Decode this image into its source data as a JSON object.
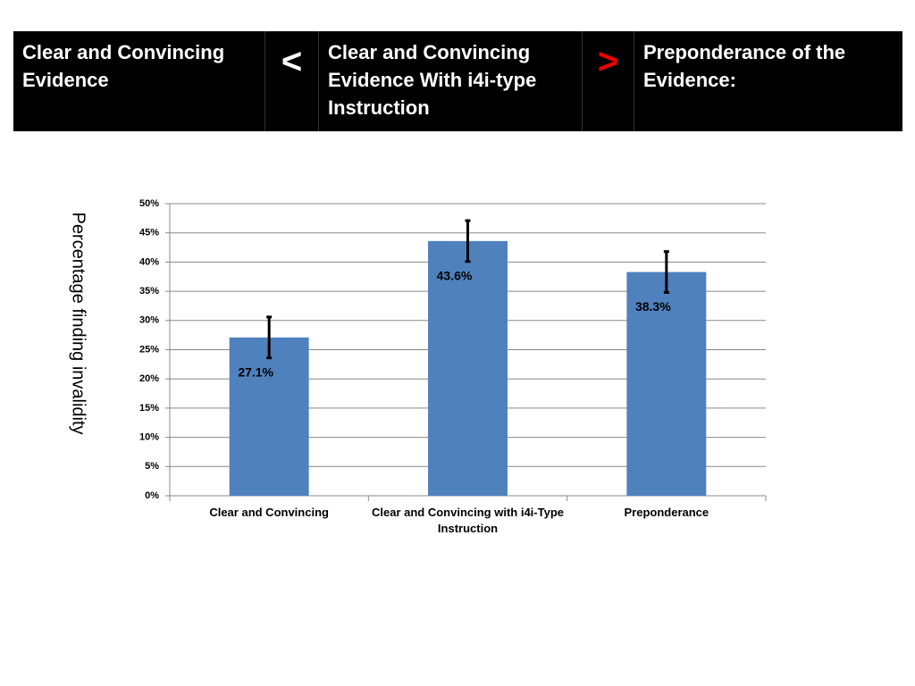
{
  "header": {
    "cells": [
      "Clear and Convincing Evidence",
      "<",
      "Clear and Convincing Evidence With i4i-type Instruction",
      ">",
      "Preponderance of the Evidence:"
    ]
  },
  "chart_data": {
    "type": "bar",
    "y_label": "Percentage finding invalidity",
    "categories": [
      "Clear and Convincing",
      "Clear and Convincing with i4i-Type Instruction",
      "Preponderance"
    ],
    "values": [
      27.1,
      43.6,
      38.3
    ],
    "value_labels": [
      "27.1%",
      "43.6%",
      "38.3%"
    ],
    "errors": [
      3.5,
      3.5,
      3.5
    ],
    "color": "#4f81bd",
    "ylim": [
      0,
      50
    ],
    "yticks": [
      {
        "value": 0,
        "label": "0%"
      },
      {
        "value": 5,
        "label": "5%"
      },
      {
        "value": 10,
        "label": "10%"
      },
      {
        "value": 15,
        "label": "15%"
      },
      {
        "value": 20,
        "label": "20%"
      },
      {
        "value": 25,
        "label": "25%"
      },
      {
        "value": 30,
        "label": "30%"
      },
      {
        "value": 35,
        "label": "35%"
      },
      {
        "value": 40,
        "label": "40%"
      },
      {
        "value": 45,
        "label": "45%"
      },
      {
        "value": 50,
        "label": "50%"
      }
    ],
    "grid": true
  }
}
